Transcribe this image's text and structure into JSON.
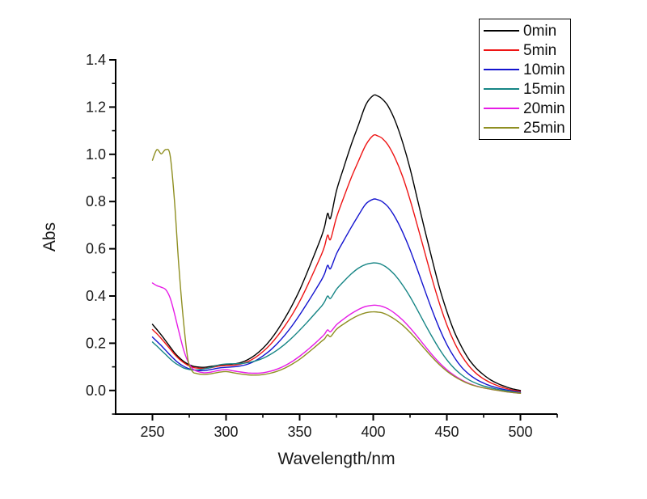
{
  "chart_data": {
    "type": "line",
    "title": "",
    "xlabel": "Wavelength/nm",
    "ylabel": "Abs",
    "xlim": [
      225,
      525
    ],
    "ylim": [
      -0.1,
      1.4
    ],
    "x_major_ticks": [
      250,
      300,
      350,
      400,
      450,
      500
    ],
    "x_minor_ticks": [
      275,
      325,
      375,
      425,
      475,
      525
    ],
    "y_major_ticks": [
      0.0,
      0.2,
      0.4,
      0.6,
      0.8,
      1.0,
      1.2,
      1.4
    ],
    "y_minor_ticks": [
      -0.1,
      0.1,
      0.3,
      0.5,
      0.7,
      0.9,
      1.1,
      1.3
    ],
    "grid": false,
    "legend_position": "top-right",
    "x": [
      250,
      253,
      256,
      259,
      262,
      265,
      268,
      271,
      274,
      277,
      280,
      285,
      290,
      295,
      300,
      305,
      310,
      315,
      320,
      325,
      330,
      335,
      340,
      345,
      350,
      355,
      360,
      365,
      367,
      369,
      371,
      375,
      380,
      385,
      390,
      395,
      400,
      403,
      406,
      410,
      415,
      420,
      425,
      430,
      435,
      440,
      445,
      450,
      455,
      460,
      465,
      470,
      475,
      480,
      485,
      490,
      495,
      500
    ],
    "series": [
      {
        "label": "0min",
        "color": "#000000",
        "values": [
          0.28,
          0.258,
          0.235,
          0.21,
          0.185,
          0.16,
          0.14,
          0.124,
          0.112,
          0.104,
          0.1,
          0.098,
          0.102,
          0.107,
          0.11,
          0.112,
          0.118,
          0.131,
          0.151,
          0.178,
          0.213,
          0.256,
          0.306,
          0.362,
          0.425,
          0.498,
          0.575,
          0.655,
          0.695,
          0.75,
          0.73,
          0.845,
          0.945,
          1.04,
          1.125,
          1.21,
          1.249,
          1.247,
          1.235,
          1.205,
          1.14,
          1.05,
          0.94,
          0.81,
          0.68,
          0.555,
          0.435,
          0.335,
          0.25,
          0.185,
          0.132,
          0.094,
          0.066,
          0.044,
          0.028,
          0.016,
          0.006,
          0.0
        ]
      },
      {
        "label": "5min",
        "color": "#ee1414",
        "values": [
          0.258,
          0.24,
          0.22,
          0.198,
          0.176,
          0.153,
          0.134,
          0.119,
          0.107,
          0.099,
          0.095,
          0.093,
          0.097,
          0.103,
          0.106,
          0.107,
          0.112,
          0.123,
          0.14,
          0.164,
          0.194,
          0.231,
          0.274,
          0.322,
          0.377,
          0.44,
          0.508,
          0.578,
          0.612,
          0.658,
          0.64,
          0.732,
          0.818,
          0.9,
          0.972,
          1.04,
          1.08,
          1.078,
          1.068,
          1.04,
          0.982,
          0.905,
          0.808,
          0.698,
          0.585,
          0.472,
          0.368,
          0.278,
          0.205,
          0.148,
          0.104,
          0.072,
          0.049,
          0.032,
          0.019,
          0.009,
          0.001,
          -0.004
        ]
      },
      {
        "label": "10min",
        "color": "#1414cf",
        "values": [
          0.226,
          0.208,
          0.19,
          0.17,
          0.15,
          0.131,
          0.115,
          0.103,
          0.094,
          0.088,
          0.085,
          0.084,
          0.089,
          0.095,
          0.098,
          0.1,
          0.104,
          0.112,
          0.126,
          0.146,
          0.17,
          0.2,
          0.235,
          0.275,
          0.32,
          0.368,
          0.418,
          0.47,
          0.495,
          0.53,
          0.516,
          0.578,
          0.635,
          0.69,
          0.742,
          0.79,
          0.81,
          0.808,
          0.8,
          0.778,
          0.732,
          0.67,
          0.596,
          0.512,
          0.425,
          0.34,
          0.262,
          0.195,
          0.141,
          0.099,
          0.069,
          0.047,
          0.031,
          0.019,
          0.01,
          0.003,
          -0.003,
          -0.008
        ]
      },
      {
        "label": "15min",
        "color": "#168585",
        "values": [
          0.205,
          0.188,
          0.17,
          0.152,
          0.134,
          0.118,
          0.106,
          0.096,
          0.09,
          0.087,
          0.087,
          0.091,
          0.098,
          0.108,
          0.112,
          0.113,
          0.114,
          0.118,
          0.125,
          0.136,
          0.152,
          0.172,
          0.196,
          0.224,
          0.255,
          0.288,
          0.323,
          0.358,
          0.376,
          0.4,
          0.39,
          0.428,
          0.462,
          0.493,
          0.518,
          0.534,
          0.54,
          0.539,
          0.533,
          0.517,
          0.487,
          0.446,
          0.397,
          0.341,
          0.283,
          0.227,
          0.175,
          0.13,
          0.094,
          0.066,
          0.045,
          0.03,
          0.019,
          0.011,
          0.004,
          -0.001,
          -0.006,
          -0.01
        ]
      },
      {
        "label": "20min",
        "color": "#e61ce6",
        "values": [
          0.455,
          0.444,
          0.437,
          0.427,
          0.392,
          0.325,
          0.248,
          0.176,
          0.124,
          0.094,
          0.082,
          0.075,
          0.078,
          0.085,
          0.088,
          0.083,
          0.078,
          0.074,
          0.073,
          0.075,
          0.081,
          0.091,
          0.105,
          0.123,
          0.145,
          0.17,
          0.197,
          0.226,
          0.239,
          0.257,
          0.249,
          0.278,
          0.303,
          0.325,
          0.343,
          0.356,
          0.361,
          0.36,
          0.356,
          0.346,
          0.325,
          0.298,
          0.265,
          0.228,
          0.189,
          0.151,
          0.117,
          0.088,
          0.064,
          0.045,
          0.03,
          0.019,
          0.011,
          0.005,
          0.0,
          -0.005,
          -0.009,
          -0.012
        ]
      },
      {
        "label": "25min",
        "color": "#8f8f22",
        "values": [
          0.975,
          1.02,
          1.002,
          1.02,
          0.996,
          0.8,
          0.52,
          0.3,
          0.135,
          0.082,
          0.072,
          0.068,
          0.071,
          0.077,
          0.08,
          0.075,
          0.07,
          0.066,
          0.065,
          0.067,
          0.073,
          0.082,
          0.095,
          0.112,
          0.132,
          0.156,
          0.182,
          0.209,
          0.219,
          0.236,
          0.228,
          0.259,
          0.282,
          0.302,
          0.318,
          0.329,
          0.333,
          0.332,
          0.329,
          0.319,
          0.3,
          0.276,
          0.246,
          0.212,
          0.176,
          0.141,
          0.109,
          0.082,
          0.06,
          0.042,
          0.028,
          0.018,
          0.011,
          0.005,
          0.0,
          -0.005,
          -0.009,
          -0.012
        ]
      }
    ]
  }
}
